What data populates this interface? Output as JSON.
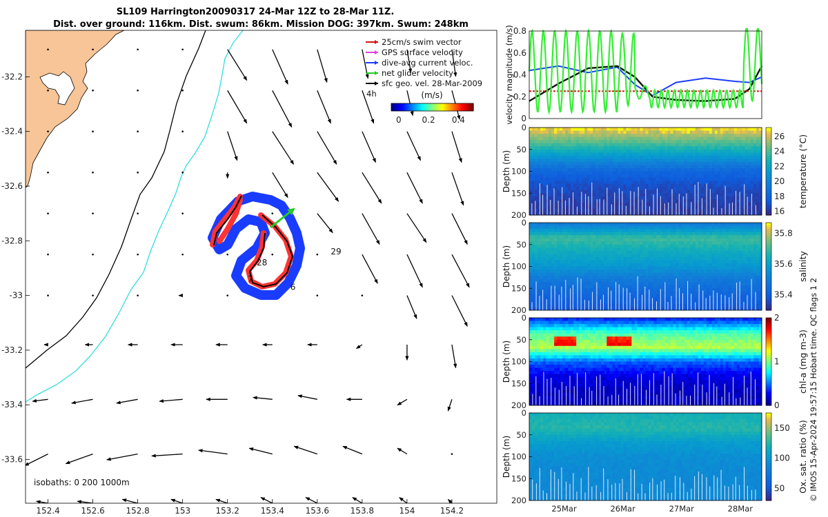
{
  "colors": {
    "land": "#f7c597",
    "isobath200": "#000000",
    "isobath1000": "#33dddd",
    "gps": "#ff3333",
    "diveavg": "#1a3cff",
    "net": "#22cc22",
    "green_line": "#33ee33"
  },
  "chart_data": [
    {
      "type": "map-quiver",
      "title": "SL109 Harrington20090317 24-Mar 12Z to 28-Mar 11Z.",
      "subtitle": "Dist. over ground: 116km. Dist. swum: 86km. Mission DOG: 397km. Swum: 248km",
      "xlim": [
        152.3,
        154.4
      ],
      "ylim": [
        -33.76,
        -32.03
      ],
      "xticks": [
        "152.4",
        "152.6",
        "152.8",
        "153",
        "153.2",
        "153.4",
        "153.6",
        "153.8",
        "154",
        "154.2"
      ],
      "xtick_values": [
        152.4,
        152.6,
        152.8,
        153.0,
        153.2,
        153.4,
        153.6,
        153.8,
        154.0,
        154.2
      ],
      "yticks": [
        "-32.2",
        "-32.4",
        "-32.6",
        "-32.8",
        "-33",
        "-33.2",
        "-33.4",
        "-33.6"
      ],
      "ytick_values": [
        -32.2,
        -32.4,
        -32.6,
        -32.8,
        -33.0,
        -33.2,
        -33.4,
        -33.6
      ],
      "legend": [
        {
          "label": "25cm/s swim vector",
          "color": "#d11111"
        },
        {
          "label": "GPS surface velocity",
          "color": "#e040e0"
        },
        {
          "label": "dive-avg current veloc.",
          "color": "#1a3cff"
        },
        {
          "label": "net glider velocity",
          "color": "#22cc22"
        },
        {
          "label": "sfc geo. vel. 28-Mar-2009",
          "color": "#000000"
        }
      ],
      "legend_extra": "4h",
      "colorbar": {
        "label": "(m/s)",
        "ticks": [
          "0",
          "0.2",
          "0.4"
        ],
        "tick_values": [
          0,
          0.2,
          0.4
        ],
        "range": [
          -0.05,
          0.5
        ]
      },
      "isobaths_label": "isobaths: 0   200   1000m",
      "day_labels": [
        {
          "text": "29",
          "lon": 153.66,
          "lat": -32.85
        },
        {
          "text": "28",
          "lon": 153.33,
          "lat": -32.89
        },
        {
          "text": "7",
          "lon": 153.29,
          "lat": -32.95
        },
        {
          "text": "6",
          "lon": 153.48,
          "lat": -32.98
        }
      ],
      "vector_grid": {
        "lons": [
          152.4,
          152.6,
          152.8,
          153.0,
          153.2,
          153.4,
          153.6,
          153.8,
          154.0,
          154.2
        ],
        "lats": [
          -32.1,
          -32.25,
          -32.4,
          -32.55,
          -32.7,
          -32.85,
          -33.0,
          -33.18,
          -33.38,
          -33.58,
          -33.76
        ],
        "u": [
          [
            0,
            0,
            0,
            0,
            0.1,
            0.08,
            0.05,
            0.03,
            0.02,
            0.02
          ],
          [
            0,
            0,
            0,
            0,
            0.1,
            0.1,
            0.07,
            0.06,
            0.03,
            0.04
          ],
          [
            0,
            0,
            0,
            0,
            0.05,
            0.11,
            0.1,
            0.07,
            0.07,
            0.05
          ],
          [
            0,
            0,
            0,
            0,
            0,
            0.08,
            0.11,
            0.1,
            0.08,
            0.06
          ],
          [
            0,
            0,
            0,
            0,
            0,
            0,
            0.08,
            0.09,
            0.1,
            0.08
          ],
          [
            0,
            0,
            0,
            0,
            0,
            0,
            0,
            0.08,
            0.08,
            0.09
          ],
          [
            0,
            0,
            0,
            -0.02,
            0,
            0,
            0,
            0,
            0.05,
            0.08
          ],
          [
            -0.02,
            -0.04,
            -0.05,
            -0.06,
            -0.06,
            -0.05,
            -0.05,
            -0.03,
            0,
            0.02
          ],
          [
            -0.08,
            -0.11,
            -0.11,
            -0.12,
            -0.11,
            -0.1,
            -0.1,
            -0.08,
            -0.05,
            -0.02
          ],
          [
            -0.12,
            -0.14,
            -0.16,
            -0.16,
            -0.15,
            -0.12,
            -0.12,
            -0.1,
            -0.05,
            0
          ],
          [
            -0.06,
            -0.08,
            -0.08,
            -0.06,
            -0.06,
            -0.06,
            -0.06,
            -0.05,
            -0.04,
            -0.02
          ]
        ],
        "v": [
          [
            0,
            0,
            0,
            0,
            -0.16,
            -0.18,
            -0.17,
            -0.15,
            -0.12,
            -0.14
          ],
          [
            0,
            0,
            0,
            0,
            -0.17,
            -0.19,
            -0.17,
            -0.17,
            -0.13,
            -0.15
          ],
          [
            0,
            0,
            0,
            0,
            -0.15,
            -0.17,
            -0.17,
            -0.16,
            -0.15,
            -0.16
          ],
          [
            0,
            0,
            0,
            0,
            -0.03,
            -0.13,
            -0.15,
            -0.16,
            -0.16,
            -0.17
          ],
          [
            0,
            0,
            0,
            0,
            0,
            0,
            -0.1,
            -0.16,
            -0.15,
            -0.16
          ],
          [
            0,
            0,
            0,
            0,
            0,
            0,
            0,
            -0.15,
            -0.17,
            -0.17
          ],
          [
            0,
            0,
            0,
            0,
            0,
            0,
            0,
            0,
            -0.12,
            -0.16
          ],
          [
            0,
            0,
            0,
            0,
            0,
            0,
            0,
            -0.02,
            -0.08,
            -0.12
          ],
          [
            -0.01,
            -0.02,
            -0.02,
            -0.01,
            0,
            0.01,
            0.02,
            0,
            -0.03,
            -0.06
          ],
          [
            -0.06,
            -0.05,
            -0.03,
            -0.01,
            0.02,
            0.03,
            0.04,
            0.04,
            0.03,
            0
          ],
          [
            0.01,
            0.01,
            0.02,
            0.02,
            0.02,
            0.03,
            0.03,
            0.03,
            0.03,
            0.02
          ]
        ]
      }
    },
    {
      "type": "line",
      "ylabel": "velocity magnitude (m/s)",
      "ylim": [
        0,
        0.8
      ],
      "yticks": [
        "0",
        "0.2",
        "0.4",
        "0.6",
        "0.8"
      ],
      "ytick_values": [
        0,
        0.2,
        0.4,
        0.6,
        0.8
      ],
      "x_days": [
        24.5,
        25.0,
        25.5,
        26.0,
        26.3,
        26.6,
        27.0,
        27.5,
        28.0,
        28.25,
        28.46
      ],
      "series": [
        {
          "name": "dive-avg current",
          "color": "#1a3cff",
          "values": [
            0.44,
            0.48,
            0.42,
            0.47,
            0.31,
            0.21,
            0.33,
            0.37,
            0.34,
            0.33,
            0.38
          ]
        },
        {
          "name": "sfc geo",
          "color": "#111111",
          "values": [
            0.16,
            0.32,
            0.46,
            0.48,
            0.38,
            0.2,
            0.17,
            0.16,
            0.18,
            0.27,
            0.48
          ]
        },
        {
          "name": "25cm/s swim",
          "color": "#d11111",
          "values": [
            0.25,
            0.25,
            0.25,
            0.25,
            0.25,
            0.25,
            0.25,
            0.25,
            0.25,
            0.25,
            0.25
          ]
        },
        {
          "name": "net glider velocity",
          "color": "#33ee33",
          "oscillating": true
        }
      ]
    },
    {
      "type": "heatmap",
      "variable": "temperature",
      "ylabel": "Depth (m)",
      "cbar_label": "temperature (°C)",
      "yticks": [
        "0",
        "50",
        "100",
        "150",
        "200"
      ],
      "ytick_values": [
        0,
        50,
        100,
        150,
        200
      ],
      "cticks": [
        "16",
        "18",
        "20",
        "22",
        "24",
        "26"
      ],
      "ctick_values": [
        16,
        18,
        20,
        22,
        24,
        26
      ],
      "crange": [
        15.5,
        27.2
      ],
      "profile": [
        26.5,
        24,
        21,
        18,
        16.8,
        16.3,
        16
      ]
    },
    {
      "type": "heatmap",
      "variable": "salinity",
      "ylabel": "Depth (m)",
      "cbar_label": "salinity",
      "yticks": [
        "0",
        "50",
        "100",
        "150",
        "200"
      ],
      "ytick_values": [
        0,
        50,
        100,
        150,
        200
      ],
      "cticks": [
        "35.4",
        "35.6",
        "35.8"
      ],
      "ctick_values": [
        35.4,
        35.6,
        35.8
      ],
      "crange": [
        35.3,
        35.87
      ],
      "profile": [
        35.5,
        35.7,
        35.63,
        35.57,
        35.48,
        35.42,
        35.38
      ]
    },
    {
      "type": "heatmap",
      "variable": "chl-a",
      "ylabel": "Depth (m)",
      "cbar_label": "chl-a (mg m-3)",
      "yticks": [
        "0",
        "50",
        "100",
        "150",
        "200"
      ],
      "ytick_values": [
        0,
        50,
        100,
        150,
        200
      ],
      "cticks": [
        "0",
        "1",
        "2"
      ],
      "ctick_values": [
        0,
        1,
        2
      ],
      "crange": [
        0,
        2
      ],
      "profile": [
        0.35,
        0.9,
        1.1,
        0.45,
        0.2,
        0.12,
        0.1
      ]
    },
    {
      "type": "heatmap",
      "variable": "oxygen",
      "ylabel": "Depth (m)",
      "cbar_label": "Ox. sat. ratio (%)",
      "yticks": [
        "0",
        "50",
        "100",
        "150",
        "200"
      ],
      "ytick_values": [
        0,
        50,
        100,
        150,
        200
      ],
      "cticks": [
        "50",
        "100",
        "150"
      ],
      "ctick_values": [
        50,
        100,
        150
      ],
      "crange": [
        30,
        175
      ],
      "profile": [
        118,
        125,
        103,
        93,
        90,
        89,
        88
      ]
    }
  ],
  "time_axis": {
    "labels": [
      "25Mar",
      "26Mar",
      "27Mar",
      "28Mar"
    ],
    "day_values": [
      25,
      26,
      27,
      28
    ],
    "range": [
      24.5,
      28.46
    ]
  },
  "credit": "© IMOS 15-Apr-2024 19:57:15 Hobart time. QC flags 1  2"
}
